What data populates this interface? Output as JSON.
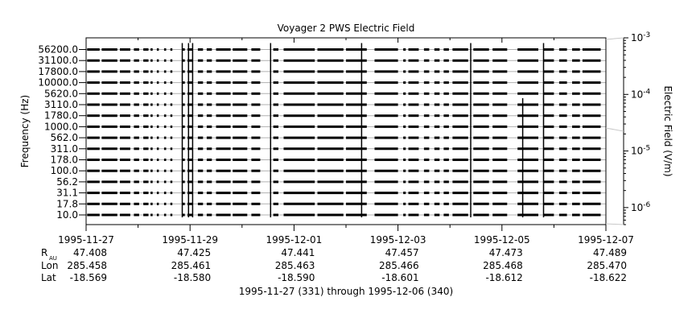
{
  "chart_data": {
    "type": "line",
    "title": "Voyager 2 PWS Electric Field",
    "ylabel": "Frequency (Hz)",
    "colorbar_label": "Electric Field (V/m)",
    "y_channels": [
      "10.0",
      "17.8",
      "31.1",
      "56.2",
      "100.0",
      "178.0",
      "311.0",
      "562.0",
      "1000.0",
      "1780.0",
      "3110.0",
      "5620.0",
      "10000.0",
      "17800.0",
      "31100.0",
      "56200.0"
    ],
    "x_tick_labels": [
      "1995-11-27",
      "1995-11-29",
      "1995-12-01",
      "1995-12-03",
      "1995-12-05",
      "1995-12-07"
    ],
    "x_range_days": [
      0,
      10
    ],
    "ephemeris": {
      "labels": {
        "r_main": "R",
        "r_sub": "AU",
        "lon": "Lon",
        "lat": "Lat"
      },
      "r_au": [
        "47.408",
        "47.425",
        "47.441",
        "47.457",
        "47.473",
        "47.489"
      ],
      "lon": [
        "285.458",
        "285.461",
        "285.463",
        "285.466",
        "285.468",
        "285.470"
      ],
      "lat": [
        "-18.569",
        "-18.580",
        "-18.590",
        "-18.601",
        "-18.612",
        "-18.622"
      ]
    },
    "xlabel": "1995-11-27 (331) through 1995-12-06 (340)",
    "colorbar": {
      "scale": "log",
      "range": [
        5e-07,
        0.001
      ],
      "ticks": [
        {
          "value": 0.001,
          "base": "10",
          "exp": "-3"
        },
        {
          "value": 0.0001,
          "base": "10",
          "exp": "-4"
        },
        {
          "value": 1e-05,
          "base": "10",
          "exp": "-5"
        },
        {
          "value": 1e-06,
          "base": "10",
          "exp": "-6"
        }
      ]
    },
    "data_segments_days": [
      [
        0.02,
        0.26
      ],
      [
        0.3,
        0.6
      ],
      [
        0.65,
        0.85
      ],
      [
        0.92,
        1.02
      ],
      [
        1.1,
        1.2
      ],
      [
        1.24,
        1.28
      ],
      [
        1.36,
        1.4
      ],
      [
        1.5,
        1.54
      ],
      [
        1.62,
        1.66
      ],
      [
        1.85,
        1.9
      ],
      [
        1.95,
        2.05
      ],
      [
        2.15,
        2.25
      ],
      [
        2.32,
        2.42
      ],
      [
        2.5,
        2.78
      ],
      [
        2.82,
        3.1
      ],
      [
        3.18,
        3.35
      ],
      [
        3.6,
        3.7
      ],
      [
        3.8,
        4.4
      ],
      [
        4.45,
        4.95
      ],
      [
        5.0,
        5.4
      ],
      [
        5.55,
        6.0
      ],
      [
        6.1,
        6.15
      ],
      [
        6.2,
        6.4
      ],
      [
        6.5,
        6.6
      ],
      [
        6.7,
        6.8
      ],
      [
        6.88,
        6.98
      ],
      [
        7.05,
        7.35
      ],
      [
        7.45,
        7.75
      ],
      [
        7.82,
        8.1
      ],
      [
        8.3,
        8.7
      ],
      [
        8.8,
        9.0
      ],
      [
        9.1,
        9.25
      ],
      [
        9.35,
        9.5
      ],
      [
        9.55,
        9.9
      ]
    ],
    "bursts_days": [
      {
        "day": 1.85,
        "top_channel": 15
      },
      {
        "day": 1.97,
        "top_channel": 15
      },
      {
        "day": 2.05,
        "top_channel": 15
      },
      {
        "day": 3.55,
        "top_channel": 15
      },
      {
        "day": 5.3,
        "top_channel": 15
      },
      {
        "day": 7.4,
        "top_channel": 15
      },
      {
        "day": 8.4,
        "top_channel": 10
      },
      {
        "day": 8.8,
        "top_channel": 15
      }
    ]
  }
}
